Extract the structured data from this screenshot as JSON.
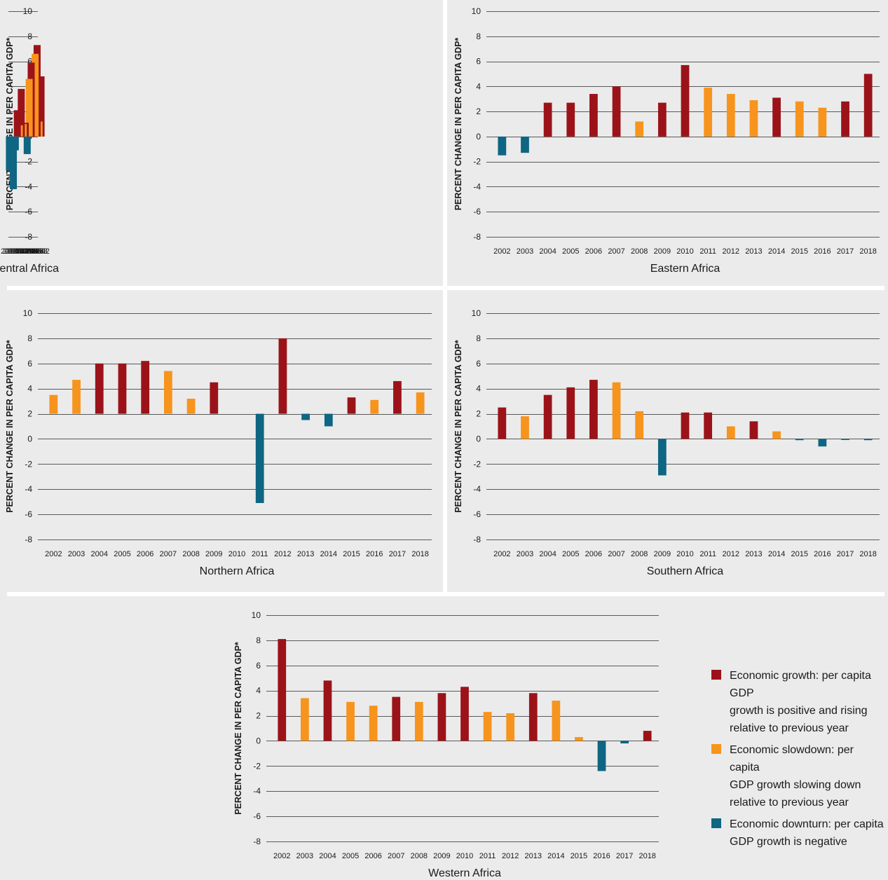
{
  "colors": {
    "growth": "#9b1319",
    "slowdown": "#f7941d",
    "downturn": "#0e6682",
    "background": "#ebebeb",
    "grid": "#5a5a5a"
  },
  "legend": [
    {
      "key": "growth",
      "label": "Economic growth: per capita GDP\ngrowth is positive and rising\nrelative to previous year"
    },
    {
      "key": "slowdown",
      "label": "Economic slowdown: per capita\nGDP growth slowing down\nrelative to previous year"
    },
    {
      "key": "downturn",
      "label": "Economic downturn: per capita\nGDP growth is negative"
    }
  ],
  "chart_data": [
    {
      "type": "bar",
      "title": "Central Africa",
      "ylabel": "PERCENT CHANGE IN PER CAPITA GDP*",
      "ylim": [
        -8,
        10
      ],
      "yticks": [
        10,
        8,
        6,
        4,
        2,
        0,
        -2,
        -4,
        -6,
        -8
      ],
      "grid": true,
      "categories": [
        "2002",
        "2003",
        "2004",
        "2005",
        "2006",
        "2007",
        "2008",
        "2009",
        "2010",
        "2011",
        "2012",
        "2013",
        "2014",
        "2015",
        "2016",
        "2017",
        "2018"
      ],
      "values": [
        4.8,
        1.2,
        7.3,
        6.6,
        3.4,
        5.9,
        4.6,
        -1.4,
        1.1,
        1.0,
        3.8,
        0.9,
        2.1,
        -1.1,
        -4.2,
        -2.7,
        -2.7
      ],
      "status": [
        "growth",
        "slowdown",
        "growth",
        "slowdown",
        "slowdown",
        "growth",
        "slowdown",
        "downturn",
        "growth",
        "slowdown",
        "growth",
        "slowdown",
        "growth",
        "downturn",
        "downturn",
        "downturn",
        "downturn"
      ]
    },
    {
      "type": "bar",
      "title": "Eastern Africa",
      "ylabel": "PERCENT CHANGE IN PER CAPITA GDP*",
      "ylim": [
        -8,
        10
      ],
      "yticks": [
        10,
        8,
        6,
        4,
        2,
        0,
        -2,
        -4,
        -6,
        -8
      ],
      "grid": true,
      "categories": [
        "2002",
        "2003",
        "2004",
        "2005",
        "2006",
        "2007",
        "2008",
        "2009",
        "2010",
        "2011",
        "2012",
        "2013",
        "2014",
        "2015",
        "2016",
        "2017",
        "2018"
      ],
      "values": [
        -1.5,
        -1.3,
        2.7,
        2.7,
        3.4,
        4.0,
        1.2,
        2.7,
        5.7,
        3.9,
        3.4,
        2.9,
        3.1,
        2.8,
        2.3,
        2.8,
        5.0
      ],
      "status": [
        "downturn",
        "downturn",
        "growth",
        "growth",
        "growth",
        "growth",
        "slowdown",
        "growth",
        "growth",
        "slowdown",
        "slowdown",
        "slowdown",
        "growth",
        "slowdown",
        "slowdown",
        "growth",
        "growth"
      ]
    },
    {
      "type": "bar",
      "title": "Northern Africa",
      "ylabel": "PERCENT CHANGE IN PER CAPITA GDP*",
      "ylim": [
        -8,
        10
      ],
      "yticks": [
        10,
        8,
        6,
        4,
        2,
        0,
        -2,
        -4,
        -6,
        -8
      ],
      "grid": true,
      "baseline": 2,
      "categories": [
        "2002",
        "2003",
        "2004",
        "2005",
        "2006",
        "2007",
        "2008",
        "2009",
        "2010",
        "2011",
        "2012",
        "2013",
        "2014",
        "2015",
        "2016",
        "2017",
        "2018"
      ],
      "values": [
        3.5,
        4.7,
        6.0,
        6.0,
        6.2,
        5.4,
        3.2,
        4.5,
        null,
        -5.1,
        8.0,
        1.5,
        1.0,
        3.3,
        3.1,
        4.6,
        3.7
      ],
      "status": [
        "slowdown",
        "slowdown",
        "growth",
        "growth",
        "growth",
        "slowdown",
        "slowdown",
        "growth",
        null,
        "downturn",
        "growth",
        "downturn",
        "downturn",
        "growth",
        "slowdown",
        "growth",
        "slowdown"
      ]
    },
    {
      "type": "bar",
      "title": "Southern Africa",
      "ylabel": "PERCENT CHANGE IN PER CAPITA GDP*",
      "ylim": [
        -8,
        10
      ],
      "yticks": [
        10,
        8,
        6,
        4,
        2,
        0,
        -2,
        -4,
        -6,
        -8
      ],
      "grid": true,
      "categories": [
        "2002",
        "2003",
        "2004",
        "2005",
        "2006",
        "2007",
        "2008",
        "2009",
        "2010",
        "2011",
        "2012",
        "2013",
        "2014",
        "2015",
        "2016",
        "2017",
        "2018"
      ],
      "values": [
        2.5,
        1.8,
        3.5,
        4.1,
        4.7,
        4.5,
        2.2,
        -2.9,
        2.1,
        2.1,
        1.0,
        1.4,
        0.6,
        -0.1,
        -0.6,
        -0.05,
        -0.1
      ],
      "status": [
        "growth",
        "slowdown",
        "growth",
        "growth",
        "growth",
        "slowdown",
        "slowdown",
        "downturn",
        "growth",
        "growth",
        "slowdown",
        "growth",
        "slowdown",
        "downturn",
        "downturn",
        "downturn",
        "downturn"
      ]
    },
    {
      "type": "bar",
      "title": "Western Africa",
      "ylabel": "PERCENT CHANGE IN PER CAPITA GDP*",
      "ylim": [
        -8,
        10
      ],
      "yticks": [
        10,
        8,
        6,
        4,
        2,
        0,
        -2,
        -4,
        -6,
        -8
      ],
      "grid": true,
      "categories": [
        "2002",
        "2003",
        "2004",
        "2005",
        "2006",
        "2007",
        "2008",
        "2009",
        "2010",
        "2011",
        "2012",
        "2013",
        "2014",
        "2015",
        "2016",
        "2017",
        "2018"
      ],
      "values": [
        8.1,
        3.4,
        4.8,
        3.1,
        2.8,
        3.5,
        3.1,
        3.8,
        4.3,
        2.3,
        2.2,
        3.8,
        3.2,
        0.3,
        -2.4,
        -0.2,
        0.8
      ],
      "status": [
        "growth",
        "slowdown",
        "growth",
        "slowdown",
        "slowdown",
        "growth",
        "slowdown",
        "growth",
        "growth",
        "slowdown",
        "slowdown",
        "growth",
        "slowdown",
        "slowdown",
        "downturn",
        "downturn",
        "growth"
      ]
    }
  ]
}
